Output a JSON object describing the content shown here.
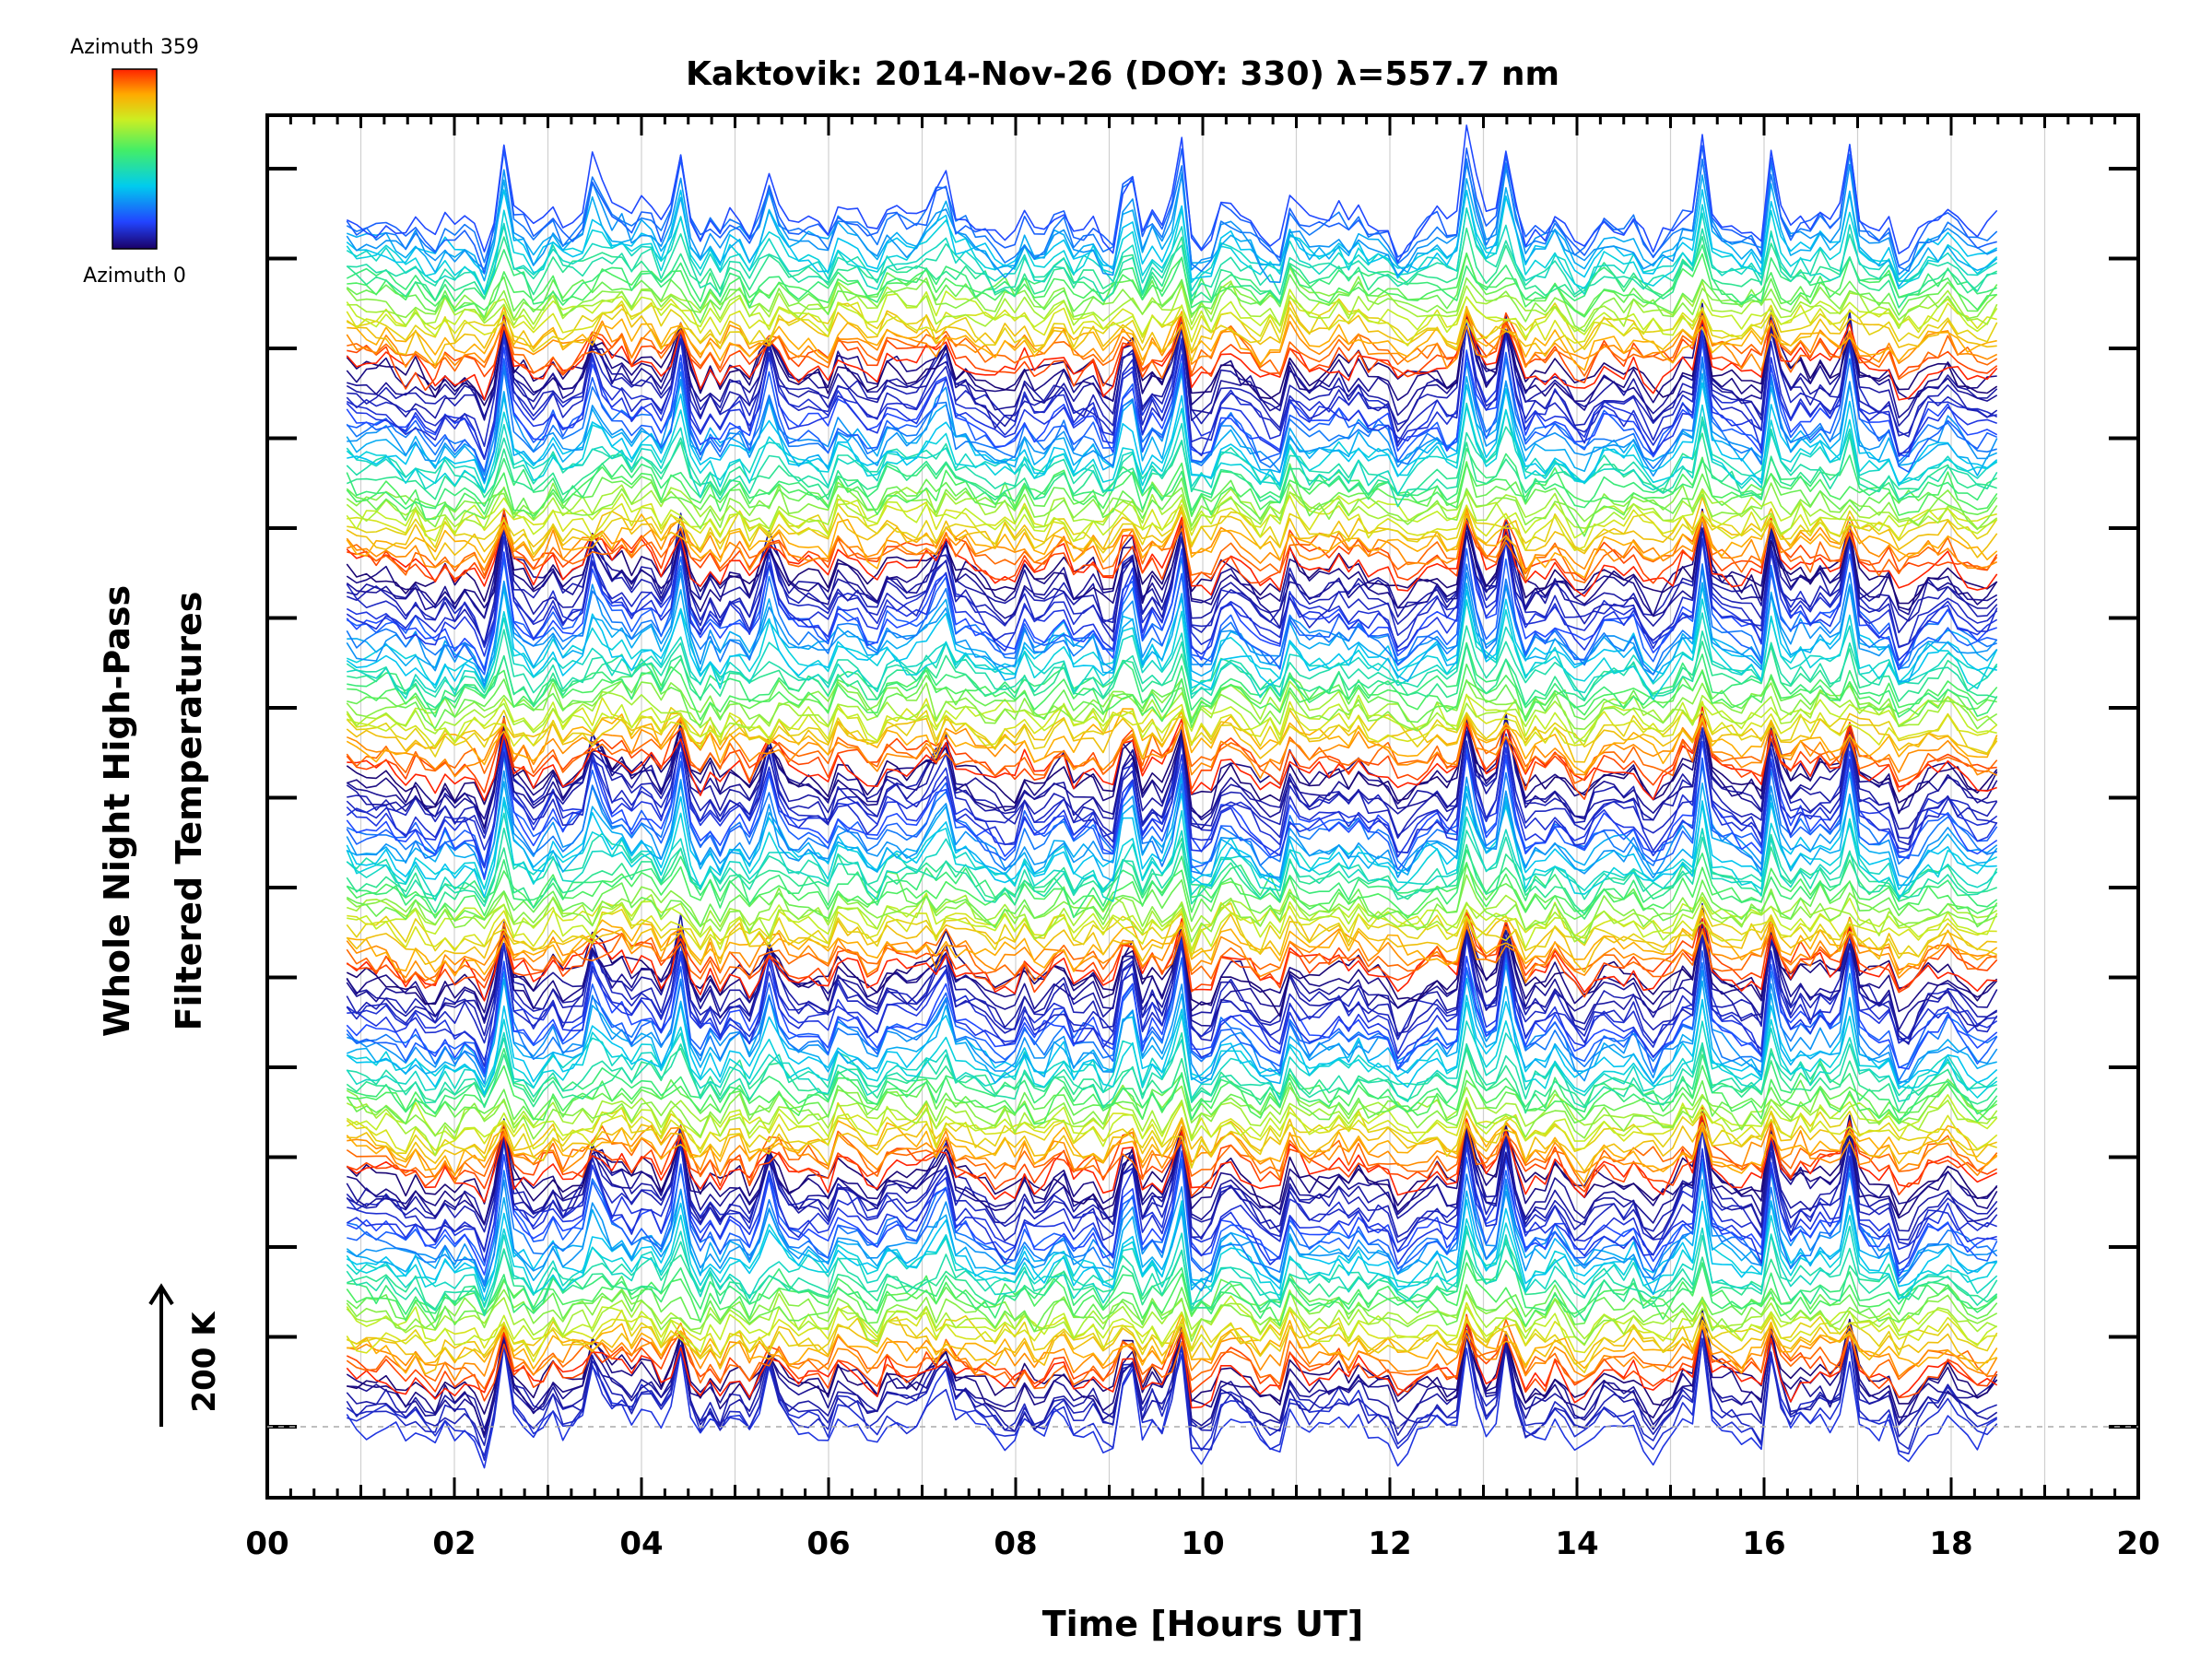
{
  "chart_data": {
    "type": "line",
    "title": "Kaktovik: 2014-Nov-26 (DOY: 330) λ=557.7 nm",
    "xlabel": "Time [Hours UT]",
    "ylabel_lines": [
      "Whole Night High-Pass",
      "Filtered Temperatures"
    ],
    "x_ticks": [
      "00",
      "02",
      "04",
      "06",
      "08",
      "10",
      "12",
      "14",
      "16",
      "18",
      "20"
    ],
    "xlim": [
      0,
      20
    ],
    "x_start": 0.85,
    "x_end": 18.5,
    "colorbar": {
      "top_label": "Azimuth 359",
      "bottom_label": "Azimuth 0",
      "colormap": "rainbow"
    },
    "scale_bar": {
      "label": "200 K"
    },
    "series_count": 192,
    "bands": 6,
    "lines_per_band": 32,
    "grid": true,
    "spike_times": [
      2.55,
      3.5,
      4.42,
      5.35,
      7.2,
      9.2,
      9.75,
      12.85,
      13.25,
      15.35,
      16.1,
      16.9
    ],
    "dip_times": [
      2.3,
      7.9,
      9.05,
      10.0,
      10.75,
      12.1,
      14.8,
      15.95,
      17.5
    ]
  }
}
